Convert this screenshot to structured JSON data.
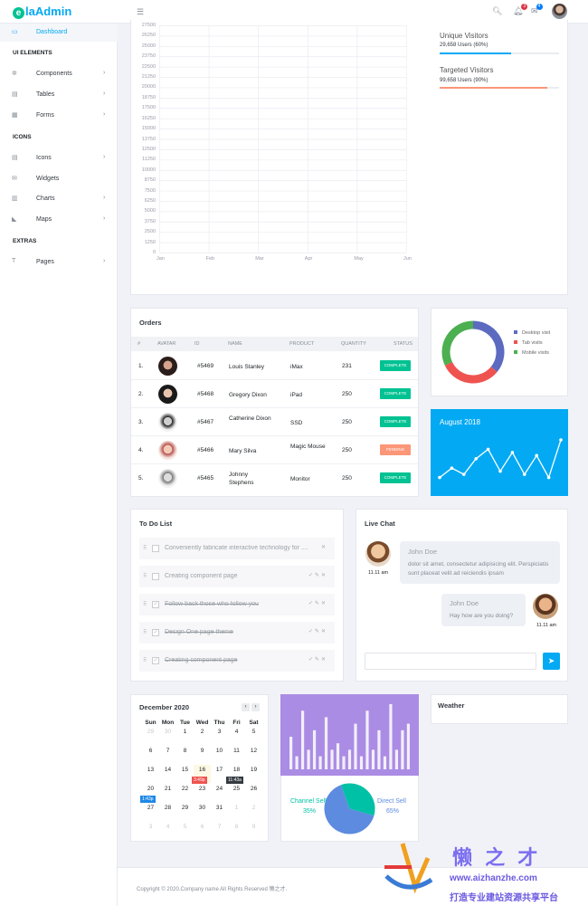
{
  "brand": {
    "logo_letter": "e",
    "name": "laAdmin"
  },
  "header": {
    "menu_icon": "hamburger-icon",
    "notification_count": "3",
    "message_count": "4"
  },
  "sidebar": {
    "dashboard": "Dashboard",
    "sections": [
      "UI ELEMENTS",
      "ICONS",
      "EXTRAS"
    ],
    "items": [
      {
        "label": "Components",
        "icon": "puzzle-icon"
      },
      {
        "label": "Tables",
        "icon": "table-icon"
      },
      {
        "label": "Forms",
        "icon": "grid-icon"
      },
      {
        "label": "Icons",
        "icon": "list-icon"
      },
      {
        "label": "Widgets",
        "icon": "envelope-icon"
      },
      {
        "label": "Charts",
        "icon": "chart-icon"
      },
      {
        "label": "Maps",
        "icon": "area-chart-icon"
      },
      {
        "label": "Pages",
        "icon": "bookmark-icon"
      }
    ]
  },
  "traffic_chart": {
    "y_ticks": [
      "27500",
      "26250",
      "25000",
      "23750",
      "22500",
      "21250",
      "20000",
      "18750",
      "17500",
      "16250",
      "15000",
      "13750",
      "12500",
      "11250",
      "10000",
      "8750",
      "7500",
      "6250",
      "5000",
      "3750",
      "2500",
      "1250",
      "0"
    ],
    "x_ticks": [
      "Jan",
      "Feb",
      "Mar",
      "Apr",
      "May",
      "Jun"
    ]
  },
  "visitors": [
    {
      "title": "Unique Visitors",
      "sub": "29,658 Users (60%)",
      "percent": 60,
      "color": "#03a9f3"
    },
    {
      "title": "Targeted Visitors",
      "sub": "99,658 Users (90%)",
      "percent": 90,
      "color": "#fb9678"
    }
  ],
  "orders": {
    "title": "Orders",
    "columns": [
      "#",
      "AVATAR",
      "ID",
      "NAME",
      "PRODUCT",
      "QUANTITY",
      "STATUS"
    ],
    "rows": [
      {
        "n": "1.",
        "id": "#5469",
        "name": "Louis Stanley",
        "product": "iMax",
        "qty": "231",
        "status": "COMPLETE"
      },
      {
        "n": "2.",
        "id": "#5468",
        "name": "Gregory Dixon",
        "product": "iPad",
        "qty": "250",
        "status": "COMPLETE"
      },
      {
        "n": "3.",
        "id": "#5467",
        "name": "Catherine Dixon",
        "product": "SSD",
        "qty": "250",
        "status": "COMPLETE"
      },
      {
        "n": "4.",
        "id": "#5466",
        "name": "Mary Silva",
        "product": "Magic Mouse",
        "qty": "250",
        "status": "PENDING"
      },
      {
        "n": "5.",
        "id": "#5465",
        "name": "Johnny Stephens",
        "product": "Monitor",
        "qty": "250",
        "status": "COMPLETE"
      }
    ]
  },
  "donut": {
    "legend": [
      "Desktop visit",
      "Tab visits",
      "Mobile visits"
    ],
    "colors": [
      "#5c6bc0",
      "#ef5350",
      "#4caf50"
    ],
    "shares": [
      0.36,
      0.32,
      0.32
    ]
  },
  "trend": {
    "title": "August 2018",
    "values": [
      3,
      6,
      4,
      9,
      12,
      5,
      11,
      4,
      10,
      3,
      15
    ]
  },
  "todo": {
    "title": "To Do List",
    "items": [
      {
        "text": "Conveniently fabricate interactive technology for ....",
        "done": false
      },
      {
        "text": "Creating component page",
        "done": false
      },
      {
        "text": "Follow back those who follow you",
        "done": true
      },
      {
        "text": "Design One page theme",
        "done": true
      },
      {
        "text": "Creating component page",
        "done": true
      }
    ]
  },
  "chat": {
    "title": "Live Chat",
    "messages": [
      {
        "name": "John Doe",
        "text": "dolor sit amet, consectetur adipisicing elit. Perspiciatis sunt placeat velit ad reiciendis ipsam",
        "time": "11.11 am"
      },
      {
        "name": "John Doe",
        "text": "Hay how are you doing?",
        "time": "11.11 am"
      }
    ],
    "input_placeholder": ""
  },
  "calendar": {
    "title": "December 2020",
    "weekdays": [
      "Sun",
      "Mon",
      "Tue",
      "Wed",
      "Thu",
      "Fri",
      "Sat"
    ],
    "weeks": [
      [
        "29",
        "30",
        "1",
        "2",
        "3",
        "4",
        "5"
      ],
      [
        "6",
        "7",
        "8",
        "9",
        "10",
        "11",
        "12"
      ],
      [
        "13",
        "14",
        "15",
        "16",
        "17",
        "18",
        "19"
      ],
      [
        "20",
        "21",
        "22",
        "23",
        "24",
        "25",
        "26"
      ],
      [
        "27",
        "28",
        "29",
        "30",
        "31",
        "1",
        "2"
      ],
      [
        "3",
        "4",
        "5",
        "6",
        "7",
        "8",
        "9"
      ]
    ],
    "events": [
      "3:49p",
      "11:43a",
      "1:43p"
    ]
  },
  "sales": {
    "bars": [
      5,
      2,
      9,
      3,
      6,
      2,
      8,
      3,
      4,
      2,
      3,
      7,
      2,
      9,
      3,
      6,
      2,
      10,
      3,
      6,
      7
    ],
    "channel_label": "Channel Sell",
    "channel_pct": "35%",
    "direct_label": "Direct Sell",
    "direct_pct": "65%",
    "pie": [
      0.35,
      0.65
    ],
    "colors": [
      "#00c0a6",
      "#5c8be0"
    ]
  },
  "weather": {
    "title": "Weather"
  },
  "footer": {
    "text": "Copyright © 2020.Company name All Rights Reserved 懒之才."
  },
  "watermark": {
    "line1": "懒 之 才",
    "line2": "www.aizhanzhe.com",
    "line3": "打造专业建站资源共享平台"
  }
}
